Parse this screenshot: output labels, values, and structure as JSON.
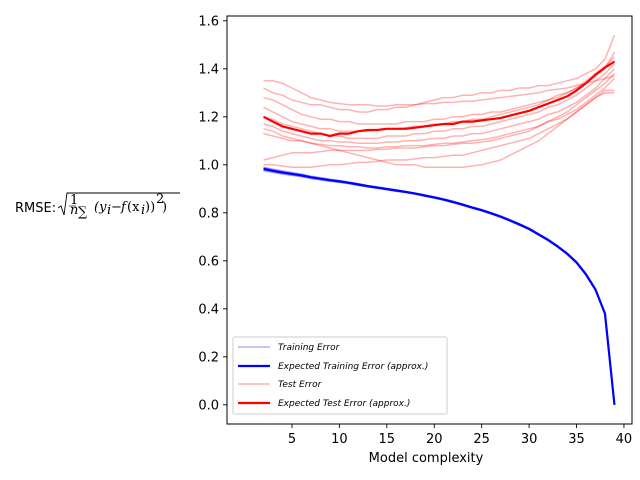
{
  "chart_data": {
    "type": "line",
    "xlabel": "Model complexity",
    "ylabel_prefix": "RMSE:",
    "ylabel_formula": "√(1/n ∑(yᵢ − f(xᵢ))²)",
    "xlim": [
      -1.85,
      40.85
    ],
    "ylim": [
      -0.08,
      1.62
    ],
    "xticks": [
      5,
      10,
      15,
      20,
      25,
      30,
      35,
      40
    ],
    "yticks": [
      0.0,
      0.2,
      0.4,
      0.6,
      0.8,
      1.0,
      1.2,
      1.4,
      1.6
    ],
    "ytick_labels": [
      "0.0",
      "0.2",
      "0.4",
      "0.6",
      "0.8",
      "1.0",
      "1.2",
      "1.4",
      "1.6"
    ],
    "colors": {
      "training": "#0000ff",
      "test": "#ff0000"
    },
    "legend": {
      "placement": "lower-left",
      "entries": [
        {
          "label": "Training Error",
          "style": "training-faint"
        },
        {
          "label": "Expected Training Error (approx.)",
          "style": "training-bold"
        },
        {
          "label": "Test Error",
          "style": "test-faint"
        },
        {
          "label": "Expected Test Error (approx.)",
          "style": "test-bold"
        }
      ]
    },
    "x": [
      2,
      3,
      4,
      5,
      6,
      7,
      8,
      9,
      10,
      11,
      12,
      13,
      14,
      15,
      16,
      17,
      18,
      19,
      20,
      21,
      22,
      23,
      24,
      25,
      26,
      27,
      28,
      29,
      30,
      31,
      32,
      33,
      34,
      35,
      36,
      37,
      38,
      39
    ],
    "series": [
      {
        "name": "Expected Training Error (approx.)",
        "kind": "training-bold",
        "values": [
          0.983,
          0.975,
          0.968,
          0.962,
          0.956,
          0.948,
          0.942,
          0.936,
          0.931,
          0.925,
          0.918,
          0.911,
          0.905,
          0.899,
          0.893,
          0.887,
          0.88,
          0.872,
          0.864,
          0.855,
          0.845,
          0.834,
          0.822,
          0.811,
          0.798,
          0.784,
          0.768,
          0.751,
          0.733,
          0.71,
          0.687,
          0.66,
          0.63,
          0.593,
          0.543,
          0.48,
          0.38,
          0.0
        ]
      },
      {
        "name": "Expected Test Error (approx.)",
        "kind": "test-bold",
        "values": [
          1.2,
          1.18,
          1.16,
          1.15,
          1.14,
          1.13,
          1.13,
          1.12,
          1.13,
          1.13,
          1.14,
          1.145,
          1.145,
          1.15,
          1.15,
          1.15,
          1.155,
          1.16,
          1.165,
          1.17,
          1.17,
          1.18,
          1.18,
          1.185,
          1.19,
          1.195,
          1.205,
          1.215,
          1.225,
          1.24,
          1.255,
          1.27,
          1.285,
          1.31,
          1.34,
          1.375,
          1.405,
          1.43
        ]
      },
      {
        "kind": "training-faint",
        "values": [
          0.99,
          0.982,
          0.975,
          0.968,
          0.961,
          0.953,
          0.946,
          0.94,
          0.934,
          0.928,
          0.921,
          0.914,
          0.907,
          0.901,
          0.895,
          0.889,
          0.882,
          0.874,
          0.866,
          0.857,
          0.847,
          0.836,
          0.824,
          0.813,
          0.8,
          0.786,
          0.77,
          0.753,
          0.735,
          0.712,
          0.689,
          0.662,
          0.632,
          0.595,
          0.545,
          0.482,
          0.382,
          0.0
        ]
      },
      {
        "kind": "training-faint",
        "values": [
          0.975,
          0.968,
          0.961,
          0.956,
          0.95,
          0.943,
          0.937,
          0.931,
          0.927,
          0.921,
          0.914,
          0.908,
          0.902,
          0.896,
          0.89,
          0.884,
          0.877,
          0.869,
          0.861,
          0.852,
          0.842,
          0.831,
          0.819,
          0.808,
          0.795,
          0.781,
          0.765,
          0.748,
          0.73,
          0.707,
          0.684,
          0.657,
          0.627,
          0.59,
          0.54,
          0.477,
          0.378,
          0.0
        ]
      },
      {
        "kind": "training-faint",
        "values": [
          0.987,
          0.979,
          0.971,
          0.966,
          0.959,
          0.951,
          0.945,
          0.939,
          0.934,
          0.928,
          0.921,
          0.914,
          0.908,
          0.902,
          0.896,
          0.889,
          0.882,
          0.875,
          0.867,
          0.858,
          0.848,
          0.837,
          0.825,
          0.814,
          0.801,
          0.787,
          0.771,
          0.754,
          0.736,
          0.713,
          0.69,
          0.663,
          0.633,
          0.597,
          0.547,
          0.484,
          0.384,
          0.0
        ]
      },
      {
        "kind": "training-faint",
        "values": [
          0.978,
          0.971,
          0.964,
          0.958,
          0.952,
          0.944,
          0.938,
          0.933,
          0.928,
          0.922,
          0.915,
          0.908,
          0.902,
          0.896,
          0.89,
          0.885,
          0.878,
          0.87,
          0.862,
          0.853,
          0.843,
          0.832,
          0.82,
          0.809,
          0.796,
          0.782,
          0.766,
          0.749,
          0.731,
          0.708,
          0.685,
          0.658,
          0.628,
          0.591,
          0.541,
          0.478,
          0.379,
          0.0
        ]
      },
      {
        "kind": "test-faint",
        "values": [
          1.35,
          1.35,
          1.34,
          1.32,
          1.3,
          1.28,
          1.27,
          1.26,
          1.255,
          1.25,
          1.25,
          1.25,
          1.245,
          1.245,
          1.25,
          1.25,
          1.25,
          1.255,
          1.255,
          1.26,
          1.26,
          1.265,
          1.265,
          1.27,
          1.275,
          1.28,
          1.285,
          1.29,
          1.295,
          1.3,
          1.31,
          1.315,
          1.32,
          1.33,
          1.34,
          1.35,
          1.36,
          1.37
        ]
      },
      {
        "kind": "test-faint",
        "values": [
          1.32,
          1.3,
          1.29,
          1.27,
          1.26,
          1.25,
          1.25,
          1.24,
          1.23,
          1.23,
          1.22,
          1.22,
          1.23,
          1.23,
          1.24,
          1.24,
          1.25,
          1.26,
          1.27,
          1.28,
          1.28,
          1.29,
          1.29,
          1.3,
          1.3,
          1.31,
          1.31,
          1.32,
          1.32,
          1.33,
          1.33,
          1.34,
          1.35,
          1.36,
          1.38,
          1.4,
          1.44,
          1.54
        ]
      },
      {
        "kind": "test-faint",
        "values": [
          1.28,
          1.27,
          1.25,
          1.23,
          1.21,
          1.2,
          1.19,
          1.19,
          1.18,
          1.18,
          1.17,
          1.17,
          1.17,
          1.17,
          1.17,
          1.18,
          1.18,
          1.18,
          1.19,
          1.19,
          1.2,
          1.2,
          1.21,
          1.21,
          1.22,
          1.22,
          1.23,
          1.24,
          1.25,
          1.26,
          1.27,
          1.29,
          1.3,
          1.32,
          1.34,
          1.37,
          1.4,
          1.47
        ]
      },
      {
        "kind": "test-faint",
        "values": [
          1.24,
          1.22,
          1.2,
          1.18,
          1.17,
          1.16,
          1.15,
          1.15,
          1.14,
          1.14,
          1.14,
          1.14,
          1.145,
          1.15,
          1.15,
          1.155,
          1.16,
          1.16,
          1.17,
          1.17,
          1.18,
          1.18,
          1.19,
          1.19,
          1.2,
          1.21,
          1.22,
          1.23,
          1.24,
          1.25,
          1.27,
          1.28,
          1.3,
          1.32,
          1.35,
          1.38,
          1.41,
          1.45
        ]
      },
      {
        "kind": "test-faint",
        "values": [
          1.2,
          1.19,
          1.17,
          1.16,
          1.15,
          1.14,
          1.13,
          1.12,
          1.12,
          1.11,
          1.11,
          1.11,
          1.11,
          1.12,
          1.12,
          1.12,
          1.13,
          1.13,
          1.14,
          1.14,
          1.15,
          1.15,
          1.16,
          1.16,
          1.17,
          1.18,
          1.19,
          1.2,
          1.21,
          1.22,
          1.24,
          1.25,
          1.27,
          1.29,
          1.32,
          1.35,
          1.38,
          1.42
        ]
      },
      {
        "kind": "test-faint",
        "values": [
          1.17,
          1.16,
          1.14,
          1.13,
          1.12,
          1.11,
          1.1,
          1.1,
          1.095,
          1.095,
          1.09,
          1.09,
          1.09,
          1.095,
          1.095,
          1.1,
          1.1,
          1.105,
          1.11,
          1.11,
          1.12,
          1.12,
          1.13,
          1.13,
          1.14,
          1.15,
          1.16,
          1.17,
          1.18,
          1.19,
          1.21,
          1.22,
          1.24,
          1.26,
          1.29,
          1.32,
          1.36,
          1.4
        ]
      },
      {
        "kind": "test-faint",
        "values": [
          1.13,
          1.12,
          1.11,
          1.1,
          1.1,
          1.09,
          1.085,
          1.08,
          1.08,
          1.075,
          1.075,
          1.07,
          1.07,
          1.075,
          1.075,
          1.08,
          1.08,
          1.08,
          1.085,
          1.09,
          1.09,
          1.095,
          1.1,
          1.105,
          1.11,
          1.12,
          1.13,
          1.14,
          1.15,
          1.16,
          1.18,
          1.19,
          1.21,
          1.23,
          1.26,
          1.29,
          1.32,
          1.36
        ]
      },
      {
        "kind": "test-faint",
        "values": [
          1.02,
          1.03,
          1.04,
          1.05,
          1.05,
          1.05,
          1.055,
          1.06,
          1.06,
          1.06,
          1.06,
          1.06,
          1.065,
          1.065,
          1.07,
          1.07,
          1.07,
          1.075,
          1.08,
          1.08,
          1.085,
          1.09,
          1.09,
          1.095,
          1.1,
          1.11,
          1.12,
          1.13,
          1.14,
          1.16,
          1.18,
          1.2,
          1.22,
          1.25,
          1.28,
          1.31,
          1.34,
          1.38
        ]
      },
      {
        "kind": "test-faint",
        "values": [
          1.0,
          1.0,
          0.995,
          0.99,
          0.99,
          0.99,
          0.995,
          1.0,
          1.0,
          1.005,
          1.01,
          1.01,
          1.015,
          1.02,
          1.02,
          1.02,
          1.025,
          1.03,
          1.03,
          1.035,
          1.04,
          1.04,
          1.05,
          1.06,
          1.07,
          1.08,
          1.09,
          1.1,
          1.11,
          1.13,
          1.15,
          1.17,
          1.19,
          1.22,
          1.25,
          1.28,
          1.31,
          1.31
        ]
      },
      {
        "kind": "test-faint",
        "values": [
          1.15,
          1.14,
          1.12,
          1.11,
          1.1,
          1.09,
          1.08,
          1.07,
          1.06,
          1.05,
          1.04,
          1.03,
          1.02,
          1.01,
          1.0,
          1.0,
          1.0,
          0.99,
          0.99,
          0.99,
          0.99,
          0.99,
          0.995,
          1.0,
          1.01,
          1.02,
          1.04,
          1.06,
          1.08,
          1.1,
          1.13,
          1.16,
          1.19,
          1.22,
          1.25,
          1.28,
          1.3,
          1.3
        ]
      }
    ]
  }
}
